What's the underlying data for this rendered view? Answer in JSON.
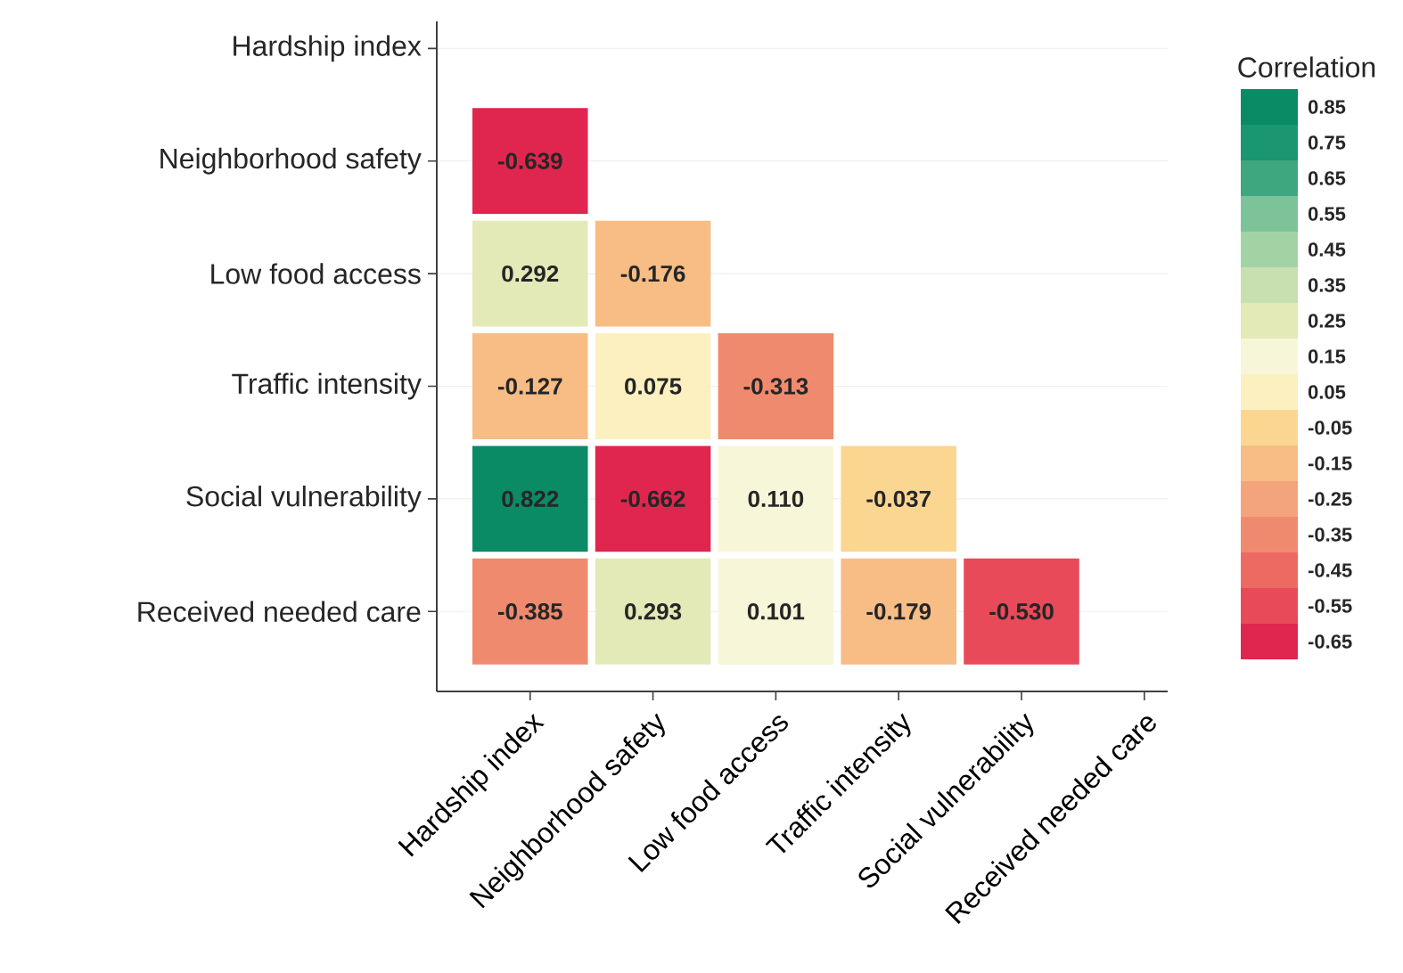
{
  "chart_data": {
    "type": "heatmap",
    "categories": [
      "Hardship index",
      "Neighborhood safety",
      "Low food access",
      "Traffic intensity",
      "Social vulnerability",
      "Received needed care"
    ],
    "y_categories": [
      "Hardship index",
      "Neighborhood safety",
      "Low food access",
      "Traffic intensity",
      "Social vulnerability",
      "Received needed care"
    ],
    "cells": [
      [
        null,
        null,
        null,
        null,
        null,
        null
      ],
      [
        -0.639,
        null,
        null,
        null,
        null,
        null
      ],
      [
        0.292,
        -0.176,
        null,
        null,
        null,
        null
      ],
      [
        -0.127,
        0.075,
        -0.313,
        null,
        null,
        null
      ],
      [
        0.822,
        -0.662,
        0.11,
        -0.037,
        null,
        null
      ],
      [
        -0.385,
        0.293,
        0.101,
        -0.179,
        -0.53,
        null
      ]
    ],
    "cell_labels": [
      [
        null,
        null,
        null,
        null,
        null,
        null
      ],
      [
        "-0.639",
        null,
        null,
        null,
        null,
        null
      ],
      [
        "0.292",
        "-0.176",
        null,
        null,
        null,
        null
      ],
      [
        "-0.127",
        "0.075",
        "-0.313",
        null,
        null,
        null
      ],
      [
        "0.822",
        "-0.662",
        "0.110",
        "-0.037",
        null,
        null
      ],
      [
        "-0.385",
        "0.293",
        "0.101",
        "-0.179",
        "-0.530",
        null
      ]
    ],
    "clabel": "Correlation",
    "clim": [
      -0.7,
      0.9
    ],
    "cticks": [
      -0.65,
      -0.55,
      -0.45,
      -0.35,
      -0.25,
      -0.15,
      -0.05,
      0.05,
      0.15,
      0.25,
      0.35,
      0.45,
      0.55,
      0.65,
      0.75,
      0.85
    ],
    "grid": "y"
  }
}
